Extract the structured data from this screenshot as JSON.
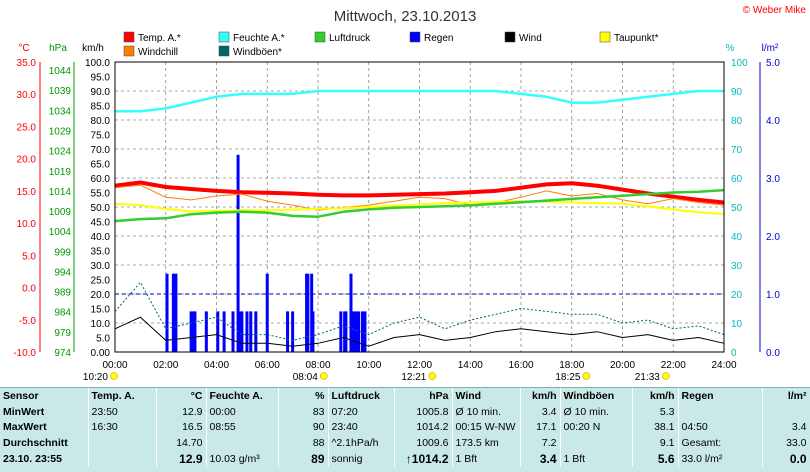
{
  "title": "Mittwoch, 23.10.2013",
  "copyright": "© Weber Mike",
  "axis_units": {
    "temp": "°C",
    "hpa": "hPa",
    "kmh": "km/h",
    "pct": "%",
    "lm2": "l/m²"
  },
  "legend": [
    {
      "label": "Temp. A.*",
      "color": "#ff0000"
    },
    {
      "label": "Feuchte A.*",
      "color": "#33ffff"
    },
    {
      "label": "Luftdruck",
      "color": "#33cc33"
    },
    {
      "label": "Regen",
      "color": "#0000ff"
    },
    {
      "label": "Wind",
      "color": "#000000"
    },
    {
      "label": "Taupunkt*",
      "color": "#ffff00"
    },
    {
      "label": "Windchill",
      "color": "#ff8000"
    },
    {
      "label": "Windböen*",
      "color": "#006666"
    }
  ],
  "chart_data": {
    "type": "line",
    "title": "Mittwoch, 23.10.2013",
    "x_ticks": [
      "00:00",
      "02:00",
      "04:00",
      "06:00",
      "08:00",
      "10:00",
      "12:00",
      "14:00",
      "16:00",
      "18:00",
      "20:00",
      "22:00",
      "24:00"
    ],
    "axes": {
      "temp_c": {
        "label": "°C",
        "range": [
          -10,
          35
        ],
        "ticks": [
          "35.0",
          "30.0",
          "25.0",
          "20.0",
          "15.0",
          "10.0",
          "5.0",
          "0.0",
          "-5.0",
          "-10.0"
        ]
      },
      "pressure": {
        "label": "hPa",
        "range": [
          974,
          1046
        ],
        "ticks": [
          "1044",
          "1039",
          "1034",
          "1029",
          "1024",
          "1019",
          "1014",
          "1009",
          "1004",
          "999",
          "994",
          "989",
          "984",
          "979",
          "974"
        ]
      },
      "wind_kmh": {
        "label": "km/h",
        "range": [
          0,
          100
        ],
        "ticks": [
          "100.0",
          "95.0",
          "90.0",
          "85.0",
          "80.0",
          "75.0",
          "70.0",
          "65.0",
          "60.0",
          "55.0",
          "50.0",
          "45.0",
          "40.0",
          "35.0",
          "30.0",
          "25.0",
          "20.0",
          "15.0",
          "10.0",
          "5.0",
          "0.00"
        ]
      },
      "humidity": {
        "label": "%",
        "range": [
          0,
          100
        ],
        "ticks": [
          "100",
          "90",
          "80",
          "70",
          "60",
          "50",
          "40",
          "30",
          "20",
          "10",
          "0"
        ]
      },
      "rain": {
        "label": "l/m²",
        "range": [
          0,
          5
        ],
        "ticks": [
          "5.0",
          "4.0",
          "3.0",
          "2.0",
          "1.0",
          "0.0"
        ]
      }
    },
    "x_hours": [
      0,
      1,
      2,
      3,
      4,
      5,
      6,
      7,
      8,
      9,
      10,
      11,
      12,
      13,
      14,
      15,
      16,
      17,
      18,
      19,
      20,
      21,
      22,
      23,
      24
    ],
    "series": [
      {
        "name": "Temp. A.*",
        "axis": "temp_c",
        "color": "#ff0000",
        "values": [
          15.8,
          16.3,
          15.6,
          15.3,
          15.0,
          14.8,
          14.7,
          14.6,
          14.4,
          14.3,
          14.3,
          14.4,
          14.5,
          14.6,
          14.8,
          15.0,
          15.5,
          16.0,
          16.2,
          15.8,
          15.2,
          14.6,
          14.1,
          13.6,
          13.2
        ]
      },
      {
        "name": "Windchill",
        "axis": "temp_c",
        "color": "#ff8000",
        "values": [
          15.5,
          15.9,
          14.0,
          13.6,
          14.2,
          14.5,
          13.4,
          12.8,
          12.0,
          12.4,
          12.8,
          13.4,
          14.0,
          13.8,
          12.8,
          13.2,
          14.0,
          15.0,
          14.2,
          14.6,
          13.6,
          13.0,
          13.8,
          13.2,
          12.8
        ]
      },
      {
        "name": "Taupunkt*",
        "axis": "temp_c",
        "color": "#ffff00",
        "values": [
          13.0,
          12.8,
          12.2,
          11.8,
          11.9,
          12.0,
          12.0,
          12.1,
          12.2,
          12.3,
          12.5,
          12.7,
          12.9,
          13.1,
          13.2,
          13.3,
          13.4,
          13.3,
          13.2,
          13.1,
          13.0,
          12.6,
          12.1,
          11.7,
          11.4
        ]
      },
      {
        "name": "Feuchte A.*",
        "axis": "humidity",
        "color": "#33ffff",
        "values": [
          83,
          83,
          84,
          86,
          88,
          89,
          89,
          89,
          90,
          90,
          90,
          90,
          90,
          90,
          90,
          90,
          89,
          88,
          86,
          86,
          87,
          88,
          89,
          90,
          90
        ]
      },
      {
        "name": "Luftdruck",
        "axis": "pressure",
        "color": "#33cc33",
        "values": [
          1006.5,
          1007.0,
          1007.2,
          1008.2,
          1008.6,
          1008.8,
          1008.6,
          1007.8,
          1007.6,
          1008.8,
          1009.4,
          1009.8,
          1010.0,
          1010.2,
          1010.4,
          1010.8,
          1011.2,
          1011.6,
          1012.0,
          1012.4,
          1012.8,
          1013.2,
          1013.6,
          1013.8,
          1014.2
        ]
      },
      {
        "name": "Wind",
        "axis": "wind_kmh",
        "color": "#000000",
        "values": [
          8.0,
          12.0,
          4.0,
          5.0,
          6.0,
          3.0,
          3.0,
          2.0,
          3.0,
          5.0,
          2.0,
          5.0,
          6.0,
          4.0,
          5.0,
          7.0,
          8.0,
          7.0,
          6.0,
          7.0,
          5.0,
          6.0,
          4.0,
          5.0,
          3.0
        ]
      },
      {
        "name": "Windböen*",
        "axis": "wind_kmh",
        "color": "#006666",
        "values": [
          14.0,
          24.0,
          8.0,
          10.0,
          12.0,
          6.0,
          6.0,
          4.0,
          6.0,
          9.0,
          6.0,
          10.0,
          12.0,
          8.0,
          11.0,
          13.0,
          15.0,
          14.0,
          13.0,
          13.0,
          10.0,
          11.0,
          8.0,
          9.0,
          6.0
        ]
      }
    ],
    "rain_bars": {
      "name": "Regen",
      "axis": "wind_kmh",
      "color": "#0000ff",
      "hours": [
        2.05,
        2.3,
        2.4,
        3.0,
        3.1,
        3.15,
        3.6,
        4.05,
        4.3,
        4.65,
        4.85,
        4.9,
        5.0,
        5.2,
        5.35,
        5.55,
        6.0,
        6.8,
        7.0,
        7.55,
        7.6,
        7.75,
        7.8,
        8.9,
        9.05,
        9.1,
        9.3,
        9.4,
        9.5,
        9.6,
        9.75,
        9.85
      ],
      "values": [
        27,
        27,
        27,
        14,
        14,
        14,
        14,
        14,
        14,
        14,
        68,
        14,
        14,
        14,
        14,
        14,
        27,
        14,
        14,
        27,
        27,
        27,
        14,
        14,
        14,
        14,
        27,
        14,
        14,
        14,
        14,
        14
      ]
    },
    "dashed_levels": [
      {
        "axis": "rain",
        "value": 1.0,
        "color": "#0000aa"
      }
    ],
    "sun_events": [
      {
        "label": "10:20",
        "hour": -0.2
      },
      {
        "label": "08:04",
        "hour": 8.07
      },
      {
        "label": "12:21",
        "hour": 12.35
      },
      {
        "label": "18:25",
        "hour": 18.42
      },
      {
        "label": "21:33",
        "hour": 21.55
      }
    ]
  },
  "table": {
    "headers": [
      "Sensor",
      "Temp. A.",
      "°C",
      "Feuchte A.",
      "%",
      "Luftdruck",
      "hPa",
      "Wind",
      "km/h",
      "Windböen",
      "km/h",
      "Regen",
      "l/m²"
    ],
    "rows": [
      [
        "MinWert",
        "23:50",
        "12.9",
        "00:00",
        "83",
        "07:20",
        "1005.8",
        "Ø 10 min.",
        "3.4",
        "Ø 10 min.",
        "5.3",
        "",
        ""
      ],
      [
        "MaxWert",
        "16:30",
        "16.5",
        "08:55",
        "90",
        "23:40",
        "1014.2",
        "00:15   W-NW",
        "17.1",
        "00:20      N",
        "38.1",
        "04:50",
        "3.4"
      ],
      [
        "Durchschnitt",
        "",
        "14.70",
        "",
        "88",
        "^2.1hPa/h",
        "1009.6",
        "173.5 km",
        "7.2",
        "",
        "9.1",
        "Gesamt:",
        "33.0"
      ],
      [
        "23.10.  23:55",
        "",
        "12.9",
        "10.03 g/m³",
        "89",
        "sonnig",
        "↑1014.2",
        "1 Bft",
        "3.4",
        "1 Bft",
        "5.6",
        "33.0 l/m²",
        "0.0"
      ]
    ]
  }
}
